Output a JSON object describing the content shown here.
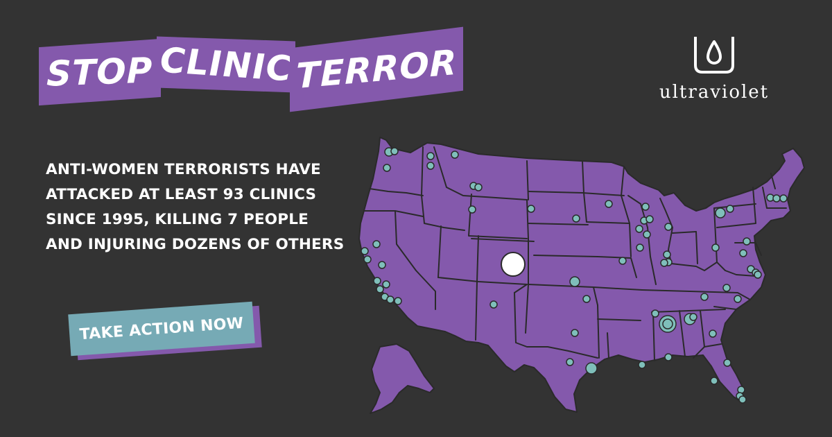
{
  "headline": {
    "words": [
      "STOP",
      "CLINIC",
      "TERROR"
    ]
  },
  "body": {
    "lines": [
      "ANTI-WOMEN TERRORISTS HAVE",
      "ATTACKED AT  LEAST 93 CLINICS",
      "SINCE 1995, KILLING 7 PEOPLE",
      "AND INJURING DOZENS OF OTHERS"
    ]
  },
  "cta": {
    "label": "TAKE ACTION NOW"
  },
  "logo": {
    "wordmark": "ultraviolet",
    "icon": "ultraviolet-droplet-icon"
  },
  "colors": {
    "background": "#333333",
    "brand_purple": "#8459ac",
    "map_fill": "#8459ac",
    "state_border": "#2a2a2a",
    "marker": "#7fbfba",
    "cta_teal": "#76aab5",
    "highlight_marker": "#ffffff",
    "text": "#ffffff"
  },
  "map": {
    "region": "United States",
    "marker_meaning": "clinic attack locations",
    "highlighted_marker_state": "Colorado"
  }
}
